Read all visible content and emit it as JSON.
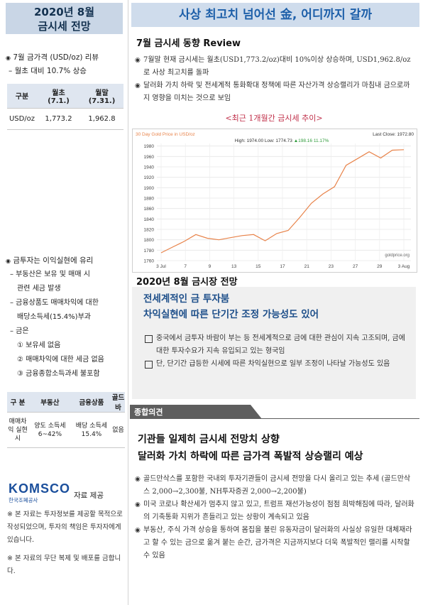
{
  "left": {
    "title_line1": "2020년 8월",
    "title_line2": "금시세 전망",
    "review_heading": "7월 금가격 (USD/oz) 리뷰",
    "review_sub": "– 월초 대비 10.7% 상승",
    "price_table": {
      "headers": [
        "구분",
        "월초",
        "월말"
      ],
      "header_dates": [
        "",
        "(7.1.)",
        "(7.31.)"
      ],
      "row": [
        "USD/oz",
        "1,773.2",
        "1,962.8"
      ]
    },
    "tax_heading": "금투자는 이익실현에 유리",
    "tax_lines": [
      "– 부동산은 보유 및 매매 시",
      "관련 세금 발생",
      "– 금융상품도 매매차익에 대한",
      "배당소득세(15.4%)부과",
      "– 금은",
      "① 보유세 없음",
      "② 매매차익에 대한 세금 없음",
      "③ 금융종합소득과세 불포함"
    ],
    "tax_table": {
      "headers": [
        "구 분",
        "부동산",
        "금융상품",
        "골드바"
      ],
      "row_label": "매매차익 실현시",
      "cells": [
        "양도 소득세 6~42%",
        "배당 소득세 15.4%",
        "없음"
      ]
    },
    "logo_text": "KOMSCO",
    "logo_sub": "한국조폐공사",
    "provided": "자료 제공",
    "notes": [
      "※ 본 자료는 투자정보를 제공할 목적으로 작성되었으며, 투자의 책임은 투자자에게 있습니다.",
      "※ 본 자료의 무단 복제 및 배포를 금합니다."
    ]
  },
  "main_title": "사상 최고치 넘어선 金, 어디까지 갈까",
  "review": {
    "heading": "7월 금시세 동향 Review",
    "bullets": [
      "7월말 현재 금시세는 월초(USD1,773.2/oz)대비 10%이상 상승하며, USD1,962.8/oz로 사상 최고치를 돌파",
      "달러화 가치 하락 및 전세계적 통화확대 정책에 따른 자산가격 상승랠리가 마침내 금으로까지 영향을 미치는 것으로 보임"
    ],
    "chart_caption": "<최근 1개월간 금시세 추이>"
  },
  "chart_data": {
    "type": "line",
    "title": "30 Day Gold Price in USD/oz",
    "last_close": "Last Close: 1972.80",
    "stats_high": "High: 1974.00 Low: 1774.73",
    "stats_change": "▲198.16 11.17%",
    "source": "goldprice.org",
    "x_tick_labels": [
      "3 Jul",
      "7",
      "9",
      "13",
      "15",
      "17",
      "21",
      "23",
      "27",
      "29",
      "3 Aug"
    ],
    "y_ticks": [
      1760,
      1780,
      1800,
      1820,
      1840,
      1860,
      1880,
      1900,
      1920,
      1940,
      1960,
      1980
    ],
    "ylim": [
      1760,
      1985
    ],
    "line_color": "#e8834a",
    "series": [
      {
        "values": [
          1775,
          1786,
          1797,
          1810,
          1803,
          1800,
          1804,
          1808,
          1810,
          1798,
          1812,
          1818,
          1843,
          1870,
          1888,
          1902,
          1943,
          1956,
          1969,
          1957,
          1972,
          1973
        ]
      }
    ]
  },
  "outlook": {
    "heading": "2020년 8월 금시장 전망",
    "sub1": "전세계적인 금 투자붐",
    "sub2": "차익실현에 따른 단기간 조정 가능성도 있어",
    "items": [
      "중국에서 금투자 바람이 부는 등 전세계적으로 금에 대한 관심이 지속 고조되며, 금에 대한 투자수요가 지속 유입되고 있는 형국임",
      "단, 단기간 급등한 시세에 따른 차익실현으로 일부 조정이 나타날 가능성도 있음"
    ]
  },
  "opinion": {
    "label": "종합의견",
    "sub1": "기관들 일제히 금시세 전망치 상향",
    "sub2": "달러화 가치 하락에 따른 금가격 폭발적 상승랠리 예상",
    "bullets": [
      "골드만삭스를 포함한 국내외 투자기관들이 금시세 전망을 다시 올리고 있는 추세 (골드만삭스 2,000→2,300불, NH투자증권 2,000→2,200불)",
      "미국 코로나 확산세가 멈추지 않고 있고, 트럼프 재선가능성이 점점 희박해짐에 따라, 달러화의 기축통화 지위가 흔들리고 있는 상황이 계속되고 있음",
      "부동산, 주식 가격 상승을 통하여 몸집을 불린 유동자금이 달러화의 사실상 유일한 대체재라고 할 수 있는 금으로 옮겨 붙는 순간, 금가격은 지금까지보다 더욱 폭발적인 랠리를 시작할 수 있음"
    ]
  }
}
